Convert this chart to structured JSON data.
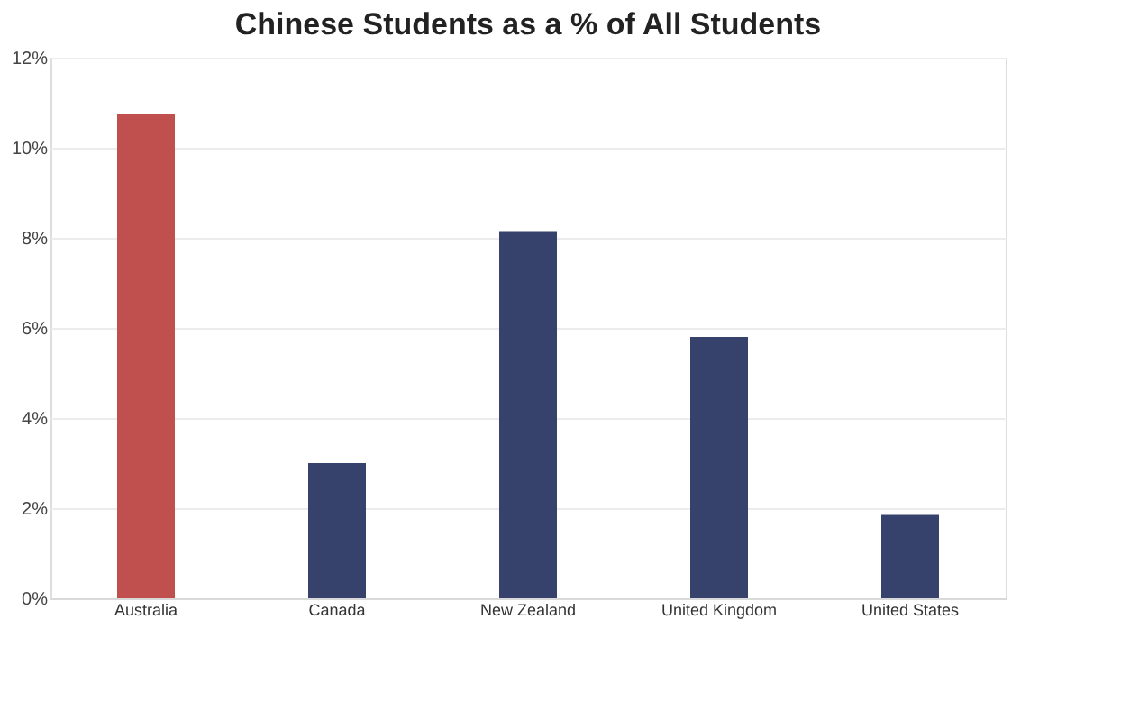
{
  "chart_data": {
    "type": "bar",
    "title": "Chinese Students as a % of All Students",
    "categories": [
      "Australia",
      "Canada",
      "New Zealand",
      "United Kingdom",
      "United States"
    ],
    "values": [
      10.75,
      3.0,
      8.15,
      5.8,
      1.85
    ],
    "colors": [
      "#c0504d",
      "#36426b",
      "#36426b",
      "#36426b",
      "#36426b"
    ],
    "ylim": [
      0,
      12
    ],
    "yticks": [
      {
        "value": 0,
        "label": "0%"
      },
      {
        "value": 2,
        "label": "2%"
      },
      {
        "value": 4,
        "label": "4%"
      },
      {
        "value": 6,
        "label": "6%"
      },
      {
        "value": 8,
        "label": "8%"
      },
      {
        "value": 10,
        "label": "10%"
      },
      {
        "value": 12,
        "label": "12%"
      }
    ],
    "grid": "y"
  }
}
